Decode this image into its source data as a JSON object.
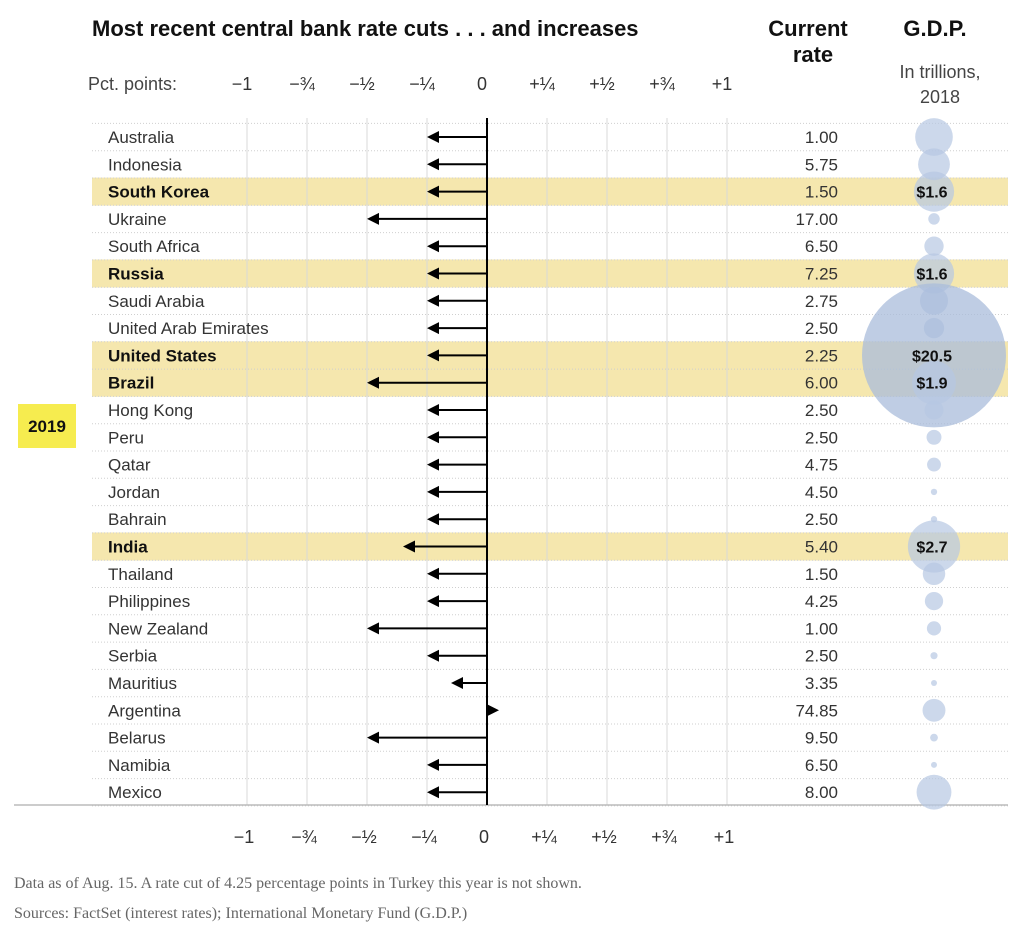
{
  "title": "Most recent central bank rate cuts . . . and increases",
  "col_rate_header": [
    "Current",
    "rate"
  ],
  "col_gdp_header": "G.D.P.",
  "gdp_sub": [
    "In trillions,",
    "2018"
  ],
  "axis_prefix": "Pct. points:",
  "year_label": "2019",
  "footnote": "Data as of Aug. 15. A rate cut of 4.25 percentage points in Turkey this year is not shown.",
  "sources": "Sources: FactSet (interest rates); International Monetary Fund (G.D.P.)",
  "colors": {
    "highlight": "#f5e7ae",
    "year_bg": "#f6ec4f",
    "bubble": "#b7c7e2",
    "bubble_big": "#a9bcdb",
    "arrow": "#000000",
    "grid": "#d8d8d8"
  },
  "chart_data": {
    "type": "bar",
    "xlim": [
      -1,
      1
    ],
    "x_ticks": [
      {
        "v": -1,
        "label": "−1"
      },
      {
        "v": -0.75,
        "label": "−¾"
      },
      {
        "v": -0.5,
        "label": "−½"
      },
      {
        "v": -0.25,
        "label": "−¼"
      },
      {
        "v": 0,
        "label": "0"
      },
      {
        "v": 0.25,
        "label": "+¼"
      },
      {
        "v": 0.5,
        "label": "+½"
      },
      {
        "v": 0.75,
        "label": "+¾"
      },
      {
        "v": 1,
        "label": "+1"
      }
    ],
    "countries": [
      {
        "name": "Australia",
        "change": -0.25,
        "rate": "1.00",
        "gdp": 1.4,
        "highlight": false,
        "gdp_label": ""
      },
      {
        "name": "Indonesia",
        "change": -0.25,
        "rate": "5.75",
        "gdp": 1.0,
        "highlight": false,
        "gdp_label": ""
      },
      {
        "name": "South Korea",
        "change": -0.25,
        "rate": "1.50",
        "gdp": 1.6,
        "highlight": true,
        "gdp_label": "$1.6"
      },
      {
        "name": "Ukraine",
        "change": -0.5,
        "rate": "17.00",
        "gdp": 0.13,
        "highlight": false,
        "gdp_label": ""
      },
      {
        "name": "South Africa",
        "change": -0.25,
        "rate": "6.50",
        "gdp": 0.37,
        "highlight": false,
        "gdp_label": ""
      },
      {
        "name": "Russia",
        "change": -0.25,
        "rate": "7.25",
        "gdp": 1.6,
        "highlight": true,
        "gdp_label": "$1.6"
      },
      {
        "name": "Saudi Arabia",
        "change": -0.25,
        "rate": "2.75",
        "gdp": 0.78,
        "highlight": false,
        "gdp_label": ""
      },
      {
        "name": "United Arab Emirates",
        "change": -0.25,
        "rate": "2.50",
        "gdp": 0.41,
        "highlight": false,
        "gdp_label": ""
      },
      {
        "name": "United States",
        "change": -0.25,
        "rate": "2.25",
        "gdp": 20.5,
        "highlight": true,
        "gdp_label": "$20.5"
      },
      {
        "name": "Brazil",
        "change": -0.5,
        "rate": "6.00",
        "gdp": 1.9,
        "highlight": true,
        "gdp_label": "$1.9"
      },
      {
        "name": "Hong Kong",
        "change": -0.25,
        "rate": "2.50",
        "gdp": 0.36,
        "highlight": false,
        "gdp_label": ""
      },
      {
        "name": "Peru",
        "change": -0.25,
        "rate": "2.50",
        "gdp": 0.22,
        "highlight": false,
        "gdp_label": ""
      },
      {
        "name": "Qatar",
        "change": -0.25,
        "rate": "4.75",
        "gdp": 0.19,
        "highlight": false,
        "gdp_label": ""
      },
      {
        "name": "Jordan",
        "change": -0.25,
        "rate": "4.50",
        "gdp": 0.04,
        "highlight": false,
        "gdp_label": ""
      },
      {
        "name": "Bahrain",
        "change": -0.25,
        "rate": "2.50",
        "gdp": 0.04,
        "highlight": false,
        "gdp_label": ""
      },
      {
        "name": "India",
        "change": -0.35,
        "rate": "5.40",
        "gdp": 2.7,
        "highlight": true,
        "gdp_label": "$2.7"
      },
      {
        "name": "Thailand",
        "change": -0.25,
        "rate": "1.50",
        "gdp": 0.5,
        "highlight": false,
        "gdp_label": ""
      },
      {
        "name": "Philippines",
        "change": -0.25,
        "rate": "4.25",
        "gdp": 0.33,
        "highlight": false,
        "gdp_label": ""
      },
      {
        "name": "New Zealand",
        "change": -0.5,
        "rate": "1.00",
        "gdp": 0.2,
        "highlight": false,
        "gdp_label": ""
      },
      {
        "name": "Serbia",
        "change": -0.25,
        "rate": "2.50",
        "gdp": 0.05,
        "highlight": false,
        "gdp_label": ""
      },
      {
        "name": "Mauritius",
        "change": -0.15,
        "rate": "3.35",
        "gdp": 0.014,
        "highlight": false,
        "gdp_label": ""
      },
      {
        "name": "Argentina",
        "change": 0.05,
        "rate": "74.85",
        "gdp": 0.52,
        "highlight": false,
        "gdp_label": ""
      },
      {
        "name": "Belarus",
        "change": -0.5,
        "rate": "9.50",
        "gdp": 0.06,
        "highlight": false,
        "gdp_label": ""
      },
      {
        "name": "Namibia",
        "change": -0.25,
        "rate": "6.50",
        "gdp": 0.014,
        "highlight": false,
        "gdp_label": ""
      },
      {
        "name": "Mexico",
        "change": -0.25,
        "rate": "8.00",
        "gdp": 1.2,
        "highlight": false,
        "gdp_label": ""
      }
    ]
  }
}
